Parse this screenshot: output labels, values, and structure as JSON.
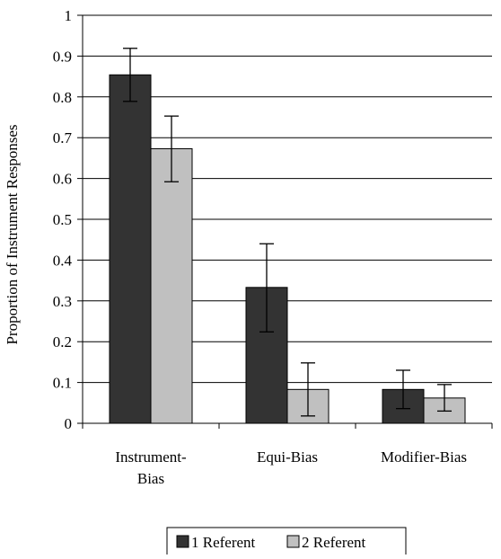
{
  "chart_data": {
    "type": "bar",
    "title": "",
    "xlabel": "",
    "ylabel": "Proportion of Instrument Responses",
    "ylim": [
      0,
      1
    ],
    "yticks": [
      "0",
      "0.1",
      "0.2",
      "0.3",
      "0.4",
      "0.5",
      "0.6",
      "0.7",
      "0.8",
      "0.9",
      "1"
    ],
    "categories": [
      [
        "Instrument-",
        "Bias"
      ],
      [
        "Equi-Bias"
      ],
      [
        "Modifier-Bias"
      ]
    ],
    "series": [
      {
        "name": "1 Referent",
        "color": "#333333",
        "values": [
          0.854,
          0.333,
          0.083
        ],
        "error_low": [
          0.789,
          0.224,
          0.036
        ],
        "error_high": [
          0.919,
          0.44,
          0.13
        ]
      },
      {
        "name": "2 Referent",
        "color": "#c0c0c0",
        "values": [
          0.673,
          0.083,
          0.062
        ],
        "error_low": [
          0.592,
          0.018,
          0.03
        ],
        "error_high": [
          0.753,
          0.148,
          0.095
        ]
      }
    ],
    "grid": true,
    "legend_position": "bottom"
  }
}
